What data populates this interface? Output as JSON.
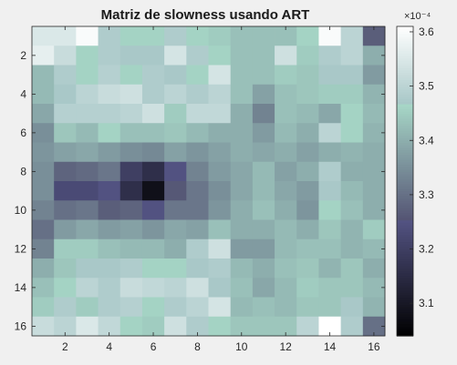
{
  "chart_data": {
    "type": "heatmap",
    "title": "Matriz de slowness usando ART",
    "xlabel": "",
    "ylabel": "",
    "xlim": [
      0.5,
      16.5
    ],
    "ylim": [
      0.5,
      16.5
    ],
    "x_ticks": [
      2,
      4,
      6,
      8,
      10,
      12,
      14,
      16
    ],
    "y_ticks": [
      2,
      4,
      6,
      8,
      10,
      12,
      14,
      16
    ],
    "y_reversed": true,
    "colormap": "bone",
    "colorbar": {
      "range": [
        3.04,
        3.61
      ],
      "ticks": [
        3.1,
        3.2,
        3.3,
        3.4,
        3.5,
        3.6
      ],
      "tick_labels": [
        "3.1",
        "3.2",
        "3.3",
        "3.4",
        "3.5",
        "3.6"
      ],
      "exponent_label": "×10⁻⁴",
      "units_scale": 0.0001
    },
    "values": [
      [
        3.55,
        3.55,
        3.6,
        3.48,
        3.46,
        3.46,
        3.48,
        3.46,
        3.45,
        3.43,
        3.43,
        3.43,
        3.46,
        3.6,
        3.5,
        3.27
      ],
      [
        3.57,
        3.52,
        3.46,
        3.48,
        3.47,
        3.47,
        3.54,
        3.48,
        3.46,
        3.43,
        3.43,
        3.53,
        3.45,
        3.48,
        3.5,
        3.4
      ],
      [
        3.42,
        3.48,
        3.46,
        3.49,
        3.46,
        3.48,
        3.47,
        3.46,
        3.54,
        3.43,
        3.43,
        3.45,
        3.44,
        3.47,
        3.47,
        3.37
      ],
      [
        3.42,
        3.47,
        3.5,
        3.52,
        3.53,
        3.48,
        3.5,
        3.48,
        3.5,
        3.43,
        3.38,
        3.43,
        3.44,
        3.45,
        3.45,
        3.41
      ],
      [
        3.39,
        3.49,
        3.49,
        3.49,
        3.5,
        3.53,
        3.45,
        3.51,
        3.51,
        3.4,
        3.33,
        3.43,
        3.42,
        3.39,
        3.46,
        3.42
      ],
      [
        3.35,
        3.44,
        3.42,
        3.46,
        3.43,
        3.43,
        3.44,
        3.42,
        3.4,
        3.4,
        3.37,
        3.42,
        3.4,
        3.5,
        3.46,
        3.41
      ],
      [
        3.36,
        3.38,
        3.39,
        3.37,
        3.35,
        3.34,
        3.38,
        3.36,
        3.38,
        3.4,
        3.39,
        3.4,
        3.38,
        3.4,
        3.41,
        3.4
      ],
      [
        3.35,
        3.28,
        3.29,
        3.31,
        3.2,
        3.16,
        3.25,
        3.33,
        3.37,
        3.39,
        3.42,
        3.38,
        3.4,
        3.48,
        3.4,
        3.4
      ],
      [
        3.35,
        3.23,
        3.23,
        3.25,
        3.16,
        3.08,
        3.26,
        3.31,
        3.35,
        3.39,
        3.42,
        3.39,
        3.37,
        3.47,
        3.42,
        3.4
      ],
      [
        3.33,
        3.3,
        3.31,
        3.27,
        3.28,
        3.25,
        3.31,
        3.31,
        3.36,
        3.4,
        3.43,
        3.4,
        3.36,
        3.46,
        3.43,
        3.4
      ],
      [
        3.3,
        3.37,
        3.39,
        3.37,
        3.38,
        3.36,
        3.39,
        3.38,
        3.43,
        3.4,
        3.4,
        3.42,
        3.4,
        3.44,
        3.41,
        3.45
      ],
      [
        3.33,
        3.45,
        3.45,
        3.43,
        3.42,
        3.42,
        3.4,
        3.48,
        3.53,
        3.37,
        3.37,
        3.42,
        3.43,
        3.43,
        3.41,
        3.42
      ],
      [
        3.4,
        3.44,
        3.47,
        3.47,
        3.48,
        3.46,
        3.46,
        3.47,
        3.48,
        3.42,
        3.4,
        3.43,
        3.44,
        3.41,
        3.44,
        3.4
      ],
      [
        3.43,
        3.46,
        3.5,
        3.48,
        3.52,
        3.51,
        3.5,
        3.53,
        3.47,
        3.43,
        3.39,
        3.42,
        3.45,
        3.44,
        3.44,
        3.42
      ],
      [
        3.45,
        3.48,
        3.45,
        3.48,
        3.49,
        3.46,
        3.48,
        3.5,
        3.54,
        3.42,
        3.43,
        3.42,
        3.44,
        3.44,
        3.47,
        3.41
      ],
      [
        3.52,
        3.5,
        3.55,
        3.51,
        3.46,
        3.45,
        3.53,
        3.48,
        3.46,
        3.44,
        3.44,
        3.44,
        3.5,
        3.61,
        3.48,
        3.3
      ]
    ]
  }
}
